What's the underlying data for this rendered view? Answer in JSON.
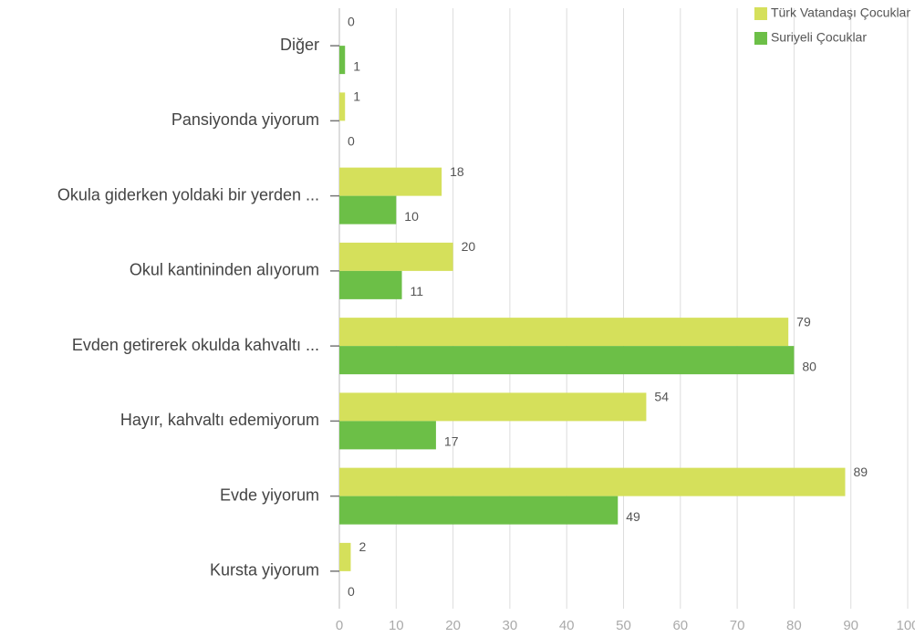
{
  "chart_data": {
    "type": "barh",
    "categories": [
      "Diğer",
      "Pansiyonda yiyorum",
      "Okula giderken yoldaki bir yerden ...",
      "Okul kantininden alıyorum",
      "Evden getirerek okulda kahvaltı ...",
      "Hayır, kahvaltı edemiyorum",
      "Evde yiyorum",
      "Kursta yiyorum"
    ],
    "series": [
      {
        "name": "Türk Vatandaşı Çocuklar",
        "color": "#d5e05b",
        "values": [
          0,
          1,
          18,
          20,
          79,
          54,
          89,
          2
        ]
      },
      {
        "name": "Suriyeli Çocuklar",
        "color": "#6cbf47",
        "values": [
          1,
          0,
          10,
          11,
          80,
          17,
          49,
          0
        ]
      }
    ],
    "xlim": [
      0,
      100
    ],
    "xticks": [
      0,
      10,
      20,
      30,
      40,
      50,
      60,
      70,
      80,
      90,
      100
    ],
    "grid": true,
    "legend": "top-right"
  }
}
